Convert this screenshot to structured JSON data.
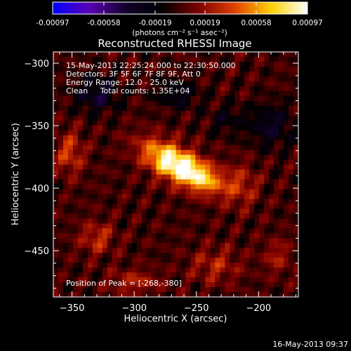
{
  "chart_data": {
    "type": "heatmap",
    "title": "Reconstructed RHESSI Image",
    "xlabel": "Heliocentric X (arcsec)",
    "ylabel": "Heliocentric Y (arcsec)",
    "xlim": [
      -365,
      -168
    ],
    "ylim": [
      -487,
      -291
    ],
    "xticks": [
      -350,
      -300,
      -250,
      -200
    ],
    "yticks": [
      -300,
      -350,
      -400,
      -450
    ],
    "colorbar": {
      "colormap": "hot-with-blue-negative",
      "colors": [
        "#0000ff",
        "#5a00b4",
        "#14002d",
        "#000000",
        "#7a0000",
        "#e04000",
        "#ffd000",
        "#ffffff"
      ],
      "range": [
        -0.00097,
        0.00097
      ],
      "ticks": [
        "-0.00097",
        "-0.00058",
        "-0.00019",
        "0.00019",
        "0.00058",
        "0.00097"
      ],
      "unit_label": "(photons cm⁻² s⁻¹ asec⁻²)"
    },
    "annotation_lines": [
      "15-May-2013 22:25:24.000 to 22:30:50.000",
      "Detectors: 3F 5F 6F 7F 8F 9F, Att 0",
      "Energy Range: 12.0 - 25.0 keV",
      "Clean     Total counts: 1.35E+04"
    ],
    "peak_label": "Position of Peak = [-268,-380]",
    "peak": {
      "x": -268,
      "y": -380
    },
    "source_blobs": [
      {
        "x": -268,
        "y": -380,
        "sx": 19,
        "sy": 9,
        "angle_deg": -28,
        "amp": 0.00097
      },
      {
        "x": -245,
        "y": -392,
        "sx": 14,
        "sy": 8,
        "angle_deg": -25,
        "amp": 0.00045
      },
      {
        "x": -352,
        "y": -372,
        "sx": 8,
        "sy": 12,
        "angle_deg": 0,
        "amp": 0.00035
      },
      {
        "x": -330,
        "y": -440,
        "sx": 10,
        "sy": 9,
        "angle_deg": 0,
        "amp": 0.0003
      },
      {
        "x": -215,
        "y": -398,
        "sx": 10,
        "sy": 12,
        "angle_deg": 0,
        "amp": 0.00028
      },
      {
        "x": -235,
        "y": -462,
        "sx": 14,
        "sy": 10,
        "angle_deg": 0,
        "amp": 0.00025
      },
      {
        "x": -300,
        "y": -475,
        "sx": 14,
        "sy": 7,
        "angle_deg": 0,
        "amp": 0.00025
      },
      {
        "x": -185,
        "y": -455,
        "sx": 8,
        "sy": 10,
        "angle_deg": 0,
        "amp": 0.00022
      },
      {
        "x": -330,
        "y": -325,
        "sx": 12,
        "sy": 10,
        "angle_deg": 0,
        "amp": -0.00035
      },
      {
        "x": -265,
        "y": -325,
        "sx": 12,
        "sy": 8,
        "angle_deg": 0,
        "amp": -0.00025
      },
      {
        "x": -190,
        "y": -350,
        "sx": 12,
        "sy": 12,
        "angle_deg": 0,
        "amp": -0.0003
      },
      {
        "x": -225,
        "y": -345,
        "sx": 10,
        "sy": 8,
        "angle_deg": 0,
        "amp": -0.0002
      }
    ]
  },
  "footer": {
    "timestamp": "16-May-2013 09:37"
  }
}
